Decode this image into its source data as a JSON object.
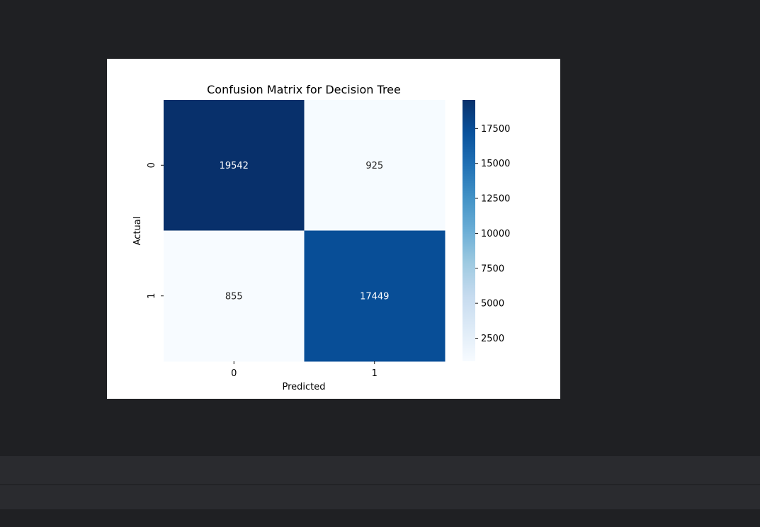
{
  "chart_data": {
    "type": "heatmap",
    "title": "Confusion Matrix for Decision Tree",
    "xlabel": "Predicted",
    "ylabel": "Actual",
    "x_tick_labels": [
      "0",
      "1"
    ],
    "y_tick_labels": [
      "0",
      "1"
    ],
    "values": [
      [
        19542,
        925
      ],
      [
        855,
        17449
      ]
    ],
    "colormap": "Blues",
    "colorbar": {
      "range": [
        855,
        19542
      ],
      "ticks": [
        2500,
        5000,
        7500,
        10000,
        12500,
        15000,
        17500
      ],
      "tick_labels": [
        "2500",
        "5000",
        "7500",
        "10000",
        "12500",
        "15000",
        "17500"
      ]
    },
    "grid": false,
    "legend": "none"
  }
}
